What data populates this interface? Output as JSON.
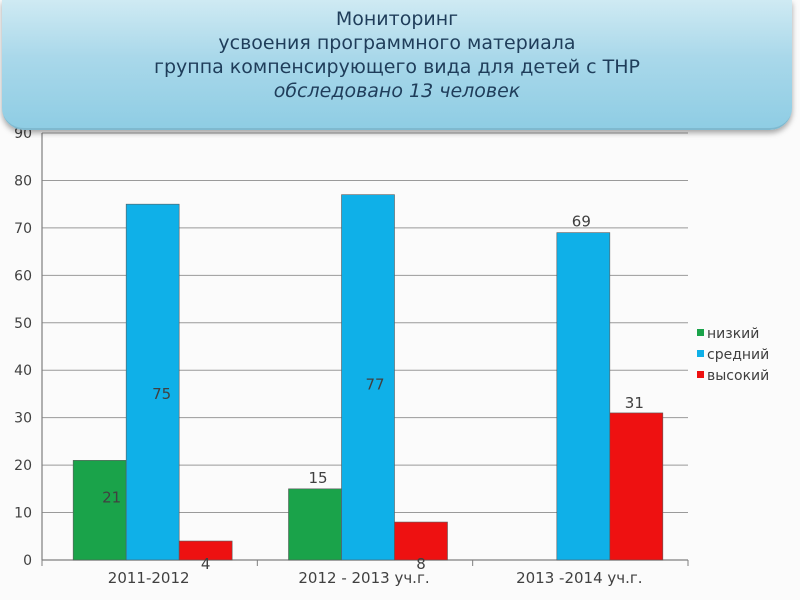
{
  "title": {
    "line1": "Мониторинг",
    "line2": "усвоения программного материала",
    "line3": "группа компенсирующего вида для детей с ТНР",
    "line4": "обследовано 13 человек"
  },
  "chart_data": {
    "type": "bar",
    "categories": [
      "2011-2012",
      "2012 - 2013 уч.г.",
      "2013 -2014 уч.г."
    ],
    "series": [
      {
        "name": "низкий",
        "color": "#1aa34a",
        "values": [
          21,
          15,
          null
        ],
        "labels": [
          "21",
          "15",
          ""
        ]
      },
      {
        "name": "средний",
        "color": "#0fb0e8",
        "values": [
          75,
          77,
          69
        ],
        "labels": [
          "75",
          "77",
          "69"
        ]
      },
      {
        "name": "высокий",
        "color": "#ee1111",
        "values": [
          4,
          8,
          31
        ],
        "labels": [
          "4",
          "8",
          "31"
        ]
      }
    ],
    "ylim": [
      0,
      90
    ],
    "yticks": [
      0,
      10,
      20,
      30,
      40,
      50,
      60,
      70,
      80,
      90
    ],
    "grid": true,
    "legend_position": "right"
  }
}
